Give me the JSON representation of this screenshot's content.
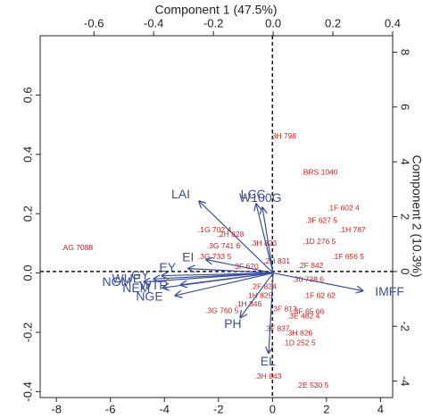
{
  "chart_data": {
    "type": "biplot",
    "xlabel": "Component 1 (47.5%)",
    "ylabel": "Component 2 (10.3%)",
    "xlim": [
      -8.6,
      4.45
    ],
    "xticks": [
      -8,
      -6,
      -4,
      -2,
      0,
      2,
      4
    ],
    "ylim": [
      -4.6,
      8.6
    ],
    "yticks": [
      -4,
      -2,
      0,
      2,
      4,
      6,
      8
    ],
    "x2lim": [
      -0.78,
      0.4
    ],
    "x2ticks": [
      -0.6,
      -0.4,
      -0.2,
      {
        "value": 0,
        "label": "0.0"
      },
      0.2,
      0.4
    ],
    "y2lim": [
      -0.42,
      0.8
    ],
    "y2ticks": [
      -0.4,
      -0.2,
      {
        "value": 0,
        "label": "0.0"
      },
      0.2,
      0.4,
      0.6
    ],
    "score_color": "#e0201b",
    "loading_color": "#3a4fa3",
    "scores": {
      "labels": [
        "3H 798",
        ".BRS 1040",
        ".1F 602 4",
        ".3F 627 5",
        ".1H 787",
        ".1D 276 5",
        ".1F 656 5",
        ".AG 7088",
        ".1G 702 4",
        ".2H 828",
        ".3G 741 6",
        ".3H 823",
        ".3G 733 5",
        ".2H 831",
        ".2F 842",
        ".3F 620",
        ".30 738 6",
        ".1F 62 62",
        ".3F 65 66",
        ".3E 482 4",
        ".3F 813",
        ".3G 760 5",
        ".1H 846",
        ".3H 826",
        ".1D 252 5",
        ".3F 837",
        ".3H 843",
        ".2E 530 5",
        ".2F 824",
        ".1H 825"
      ],
      "x": [
        0.43,
        1.74,
        2.63,
        1.81,
        2.96,
        1.74,
        2.8,
        -7.24,
        -2.14,
        -1.55,
        -1.81,
        -0.33,
        -2.14,
        0.16,
        1.41,
        -0.99,
        1.32,
        1.74,
        1.32,
        1.15,
        0.43,
        -1.87,
        -0.89,
        0.99,
        0.99,
        0.16,
        -0.16,
        1.48,
        -0.33,
        -0.49
      ],
      "y": [
        4.92,
        3.61,
        2.3,
        1.84,
        1.51,
        1.08,
        0.52,
        0.85,
        1.51,
        1.34,
        0.92,
        1.02,
        0.52,
        0.36,
        0.2,
        0.16,
        -0.3,
        -0.89,
        -1.48,
        -1.64,
        -1.38,
        -1.44,
        -1.21,
        -2.26,
        -2.62,
        -2.1,
        -3.84,
        -4.16,
        -0.56,
        -0.89
      ]
    },
    "loadings": {
      "labels": [
        "LAI",
        "LCC",
        "W100G",
        "EI",
        "EY",
        "GY",
        "NGM",
        "WUE",
        "WTR",
        "NEM",
        "NGE",
        "PH",
        "EL",
        "IMFF"
      ],
      "x": [
        -0.248,
        -0.057,
        -0.036,
        -0.224,
        -0.284,
        -0.373,
        -0.433,
        -0.4,
        -0.31,
        -0.37,
        -0.328,
        -0.11,
        -0.015,
        0.3
      ],
      "y": [
        0.242,
        0.233,
        0.221,
        0.045,
        0.015,
        -0.009,
        -0.03,
        -0.02,
        -0.04,
        -0.05,
        -0.076,
        -0.15,
        -0.27,
        -0.06
      ]
    }
  }
}
